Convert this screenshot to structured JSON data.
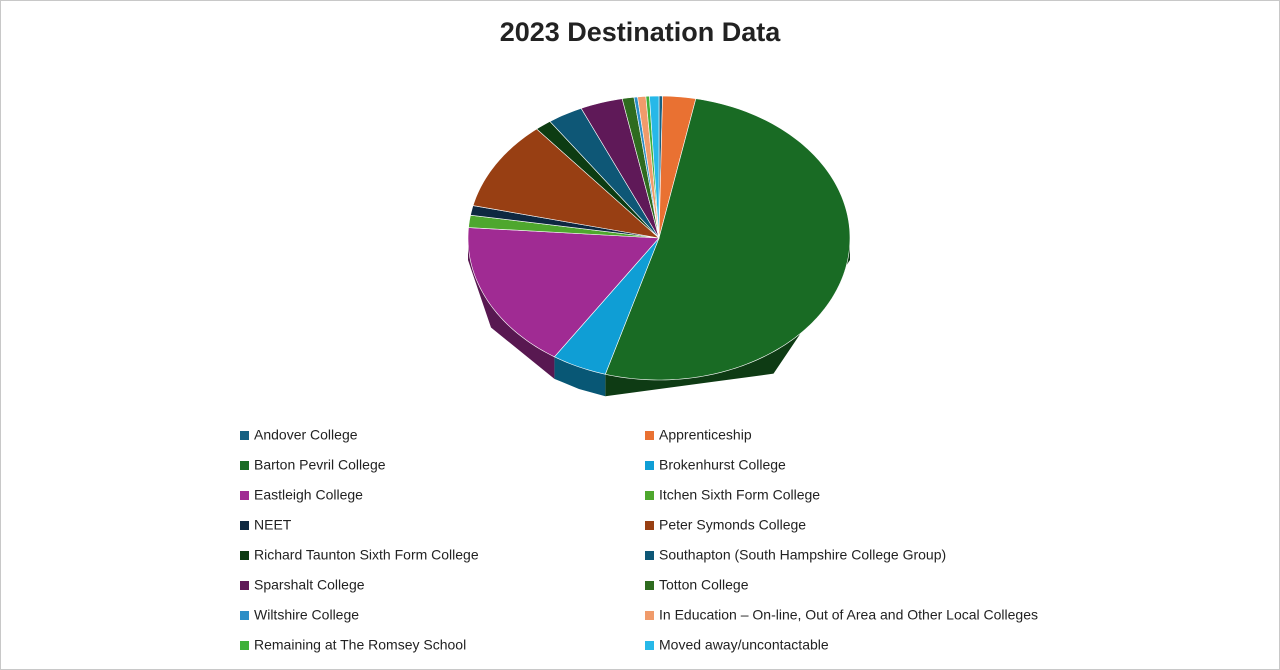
{
  "chart_data": {
    "type": "pie3d",
    "title": "2023 Destination Data",
    "categories": [
      "Andover College",
      "Apprenticeship",
      "Barton Pevril College",
      "Brokenhurst College",
      "Eastleigh College",
      "Itchen Sixth Form College",
      "NEET",
      "Peter Symonds College",
      "Richard Taunton Sixth Form College",
      "Southapton (South Hampshire College Group)",
      "Sparshalt College",
      "Totton College",
      "Wiltshire College",
      "In Education – On-line, Out of Area and Other Local Colleges",
      "Remaining at The Romsey School",
      "Moved away/uncontactable"
    ],
    "values": [
      0.3,
      2.8,
      51.6,
      4.7,
      17,
      1.4,
      1.1,
      10.3,
      1.4,
      3,
      3.6,
      1,
      0.3,
      0.7,
      0.3,
      0.8
    ],
    "colors": [
      "#156082",
      "#e97132",
      "#196b24",
      "#0f9ed5",
      "#a02b93",
      "#4ea72e",
      "#0e2841",
      "#983f13",
      "#0d3c12",
      "#0e5776",
      "#5f1958",
      "#2e6b1f",
      "#2c8ec6",
      "#f09b6b",
      "#3fb03a",
      "#27b8e8"
    ],
    "legend": "bottom"
  }
}
